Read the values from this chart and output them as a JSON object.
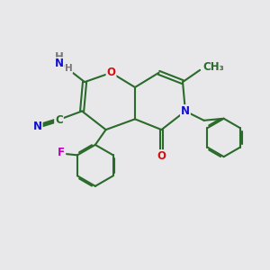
{
  "bg_color": "#e8e8eb",
  "bond_color": "#2a6b2a",
  "bond_width": 1.5,
  "dbo": 0.055,
  "atom_colors": {
    "C": "#2a6b2a",
    "N": "#1010d0",
    "O": "#d01010",
    "F": "#bb00bb",
    "H": "#777777"
  },
  "font_size": 8.5,
  "NH2_color": "#777777",
  "N_color": "#1010d0",
  "O_color": "#d01010",
  "F_color": "#bb00bb"
}
